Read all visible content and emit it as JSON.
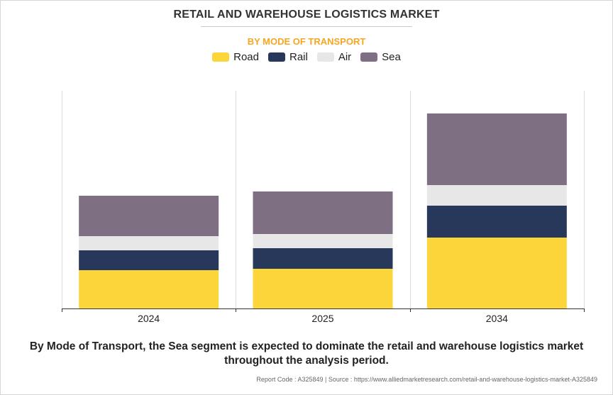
{
  "colors": {
    "road": "#fcd53a",
    "rail": "#27385a",
    "air": "#e7e7e7",
    "sea": "#7e6f83",
    "axis": "#333333",
    "grid": "#dcdcdc"
  },
  "chart_data": {
    "type": "bar",
    "stacked": true,
    "title": "RETAIL AND WAREHOUSE LOGISTICS MARKET",
    "subtitle": "BY MODE OF TRANSPORT",
    "categories": [
      "2024",
      "2025",
      "2034"
    ],
    "series": [
      {
        "name": "Road",
        "color_key": "road",
        "values": [
          54,
          56,
          100
        ]
      },
      {
        "name": "Rail",
        "color_key": "rail",
        "values": [
          28,
          29,
          45
        ]
      },
      {
        "name": "Air",
        "color_key": "air",
        "values": [
          20,
          20,
          29
        ]
      },
      {
        "name": "Sea",
        "color_key": "sea",
        "values": [
          57,
          60,
          101
        ]
      }
    ],
    "ylim": [
      0,
      307
    ],
    "xlabel": "",
    "ylabel": "",
    "grid": "vertical category separators",
    "legend_position": "top-center"
  },
  "footer": {
    "line1": "By Mode of Transport, the Sea segment is expected to dominate the retail and warehouse logistics market",
    "line2": "throughout the analysis period.",
    "report": "Report Code : A325849  |  Source : https://www.alliedmarketresearch.com/retail-and-warehouse-logistics-market-A325849"
  }
}
